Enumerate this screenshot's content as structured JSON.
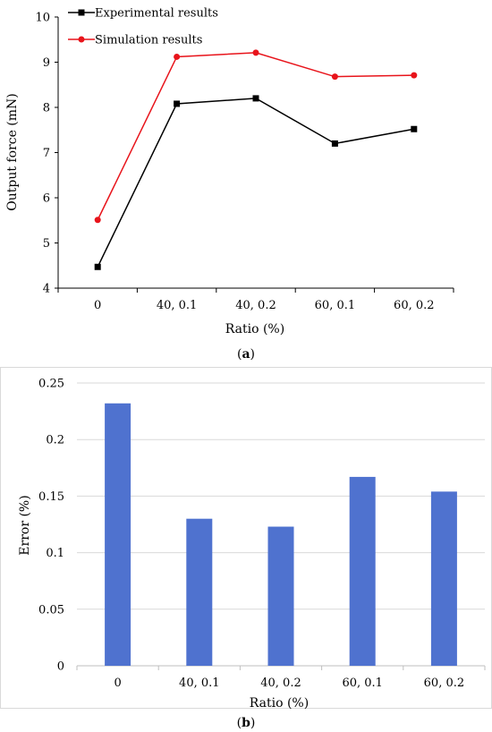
{
  "chart_data": [
    {
      "type": "line",
      "panel_label": "a",
      "categories": [
        "0",
        "40, 0.1",
        "40, 0.2",
        "60, 0.1",
        "60, 0.2"
      ],
      "series": [
        {
          "name": "Experimental results",
          "color": "#000000",
          "marker": "square",
          "values": [
            4.47,
            8.08,
            8.2,
            7.2,
            7.52
          ]
        },
        {
          "name": "Simulation results",
          "color": "#e8141b",
          "marker": "circle",
          "values": [
            5.51,
            9.12,
            9.21,
            8.68,
            8.71
          ]
        }
      ],
      "title": "",
      "xlabel": "Ratio (%)",
      "ylabel": "Output force (mN)",
      "ylim": [
        4,
        10
      ],
      "yticks": [
        "4",
        "5",
        "6",
        "7",
        "8",
        "9",
        "10"
      ],
      "grid": false,
      "legend_position": "top-left"
    },
    {
      "type": "bar",
      "panel_label": "b",
      "categories": [
        "0",
        "40, 0.1",
        "40, 0.2",
        "60, 0.1",
        "60, 0.2"
      ],
      "values": [
        0.232,
        0.13,
        0.123,
        0.167,
        0.154
      ],
      "bar_color": "#4f72cf",
      "title": "",
      "xlabel": "Ratio (%)",
      "ylabel": "Error (%)",
      "ylim": [
        0,
        0.25
      ],
      "yticks": [
        "0",
        "0.05",
        "0.1",
        "0.15",
        "0.2",
        "0.25"
      ],
      "grid": true
    }
  ]
}
